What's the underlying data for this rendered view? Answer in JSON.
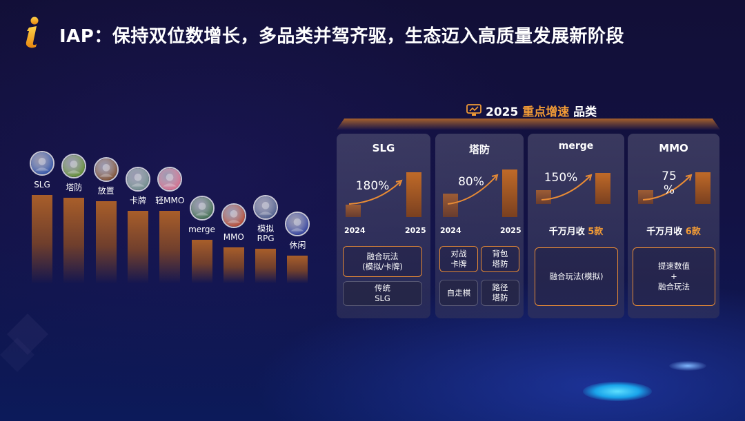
{
  "title": "IAP：保持双位数增长，多品类并驾齐驱，生态迈入高质量发展新阶段",
  "colors": {
    "accent": "#f09a36",
    "bar": "#b06228",
    "background": "#131244"
  },
  "left_chart": {
    "categories": [
      {
        "label": "SLG",
        "icon": "globe-icon",
        "value": 100
      },
      {
        "label": "塔防",
        "icon": "sunflower-icon",
        "value": 97
      },
      {
        "label": "放置",
        "icon": "hero-icon",
        "value": 93
      },
      {
        "label": "卡牌",
        "icon": "warrior-icon",
        "value": 82
      },
      {
        "label": "轻MMO",
        "icon": "pig-icon",
        "value": 82
      },
      {
        "label": "merge",
        "icon": "girl-icon",
        "value": 49
      },
      {
        "label": "MMO",
        "icon": "scroll-icon",
        "value": 41
      },
      {
        "label": "模拟\nRPG",
        "icon": "knight-icon",
        "value": 39
      },
      {
        "label": "休闲",
        "icon": "arrow-icon",
        "value": 31
      }
    ]
  },
  "panel": {
    "title_year": "2025",
    "title_highlight": "重点增速",
    "title_tail": "品类",
    "cards": [
      {
        "name": "SLG",
        "growth": "180%",
        "y_start": "2024",
        "y_end": "2025",
        "tags_orange": [
          "融合玩法\n(模拟/卡牌)"
        ],
        "tags_dark": [
          "传统\nSLG"
        ]
      },
      {
        "name": "塔防",
        "growth": "80%",
        "y_start": "2024",
        "y_end": "2025",
        "tags_orange": [
          "对战\n卡牌",
          "背包\n塔防"
        ],
        "tags_dark": [
          "自走棋",
          "路径\n塔防"
        ]
      },
      {
        "name": "merge",
        "growth": "150%",
        "note": "千万月收",
        "count": "5款",
        "tags_orange": [
          "融合玩法(模拟)"
        ]
      },
      {
        "name": "MMO",
        "growth": "75\n%",
        "note": "千万月收",
        "count": "6款",
        "tags_orange": [
          "提速数值\n+\n融合玩法"
        ]
      }
    ]
  }
}
